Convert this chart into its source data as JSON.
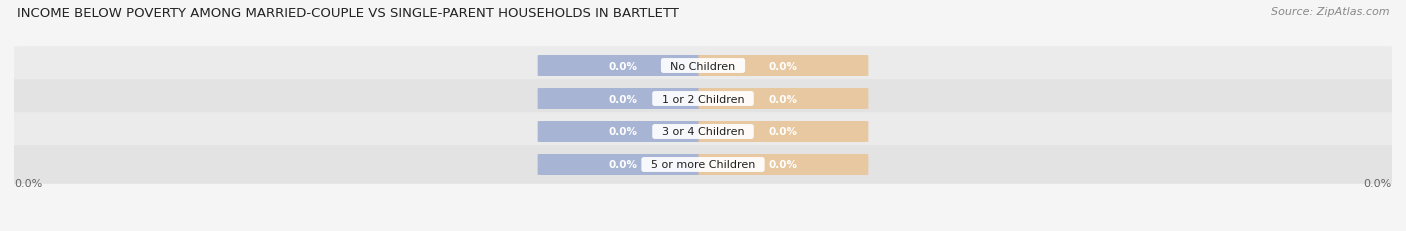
{
  "title": "INCOME BELOW POVERTY AMONG MARRIED-COUPLE VS SINGLE-PARENT HOUSEHOLDS IN BARTLETT",
  "source": "Source: ZipAtlas.com",
  "categories": [
    "No Children",
    "1 or 2 Children",
    "3 or 4 Children",
    "5 or more Children"
  ],
  "married_values": [
    0.0,
    0.0,
    0.0,
    0.0
  ],
  "single_values": [
    0.0,
    0.0,
    0.0,
    0.0
  ],
  "married_color": "#a8b4d4",
  "single_color": "#e8c8a0",
  "row_colors": [
    "#ebebeb",
    "#e3e3e3",
    "#ebebeb",
    "#e3e3e3"
  ],
  "title_fontsize": 9.5,
  "source_fontsize": 8,
  "axis_label": "0.0%",
  "bar_height": 0.62,
  "background_color": "#f5f5f5",
  "bar_width": 0.28
}
